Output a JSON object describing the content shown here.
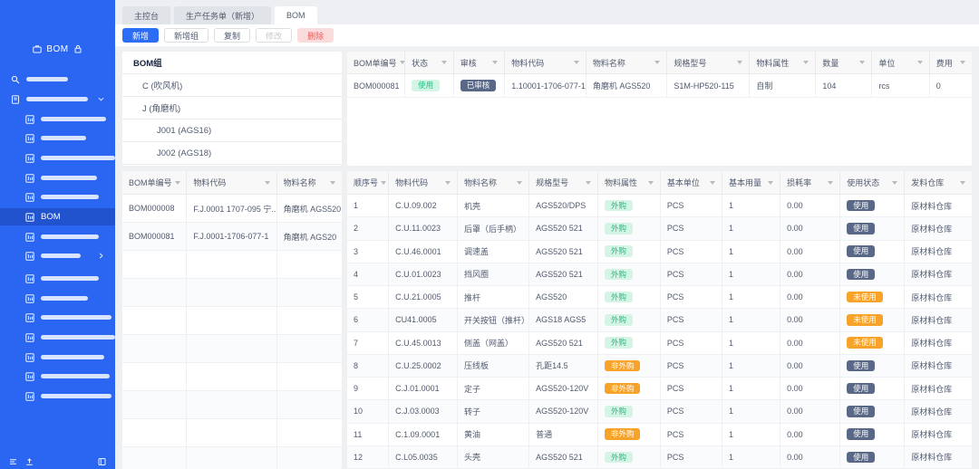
{
  "sidebar": {
    "title": "BOM",
    "header_icons": [
      "briefcase-icon",
      "lock-icon"
    ],
    "active_item": "BOM",
    "items": [
      {
        "icon": "search",
        "redacted_width": 46,
        "indent": 0
      },
      {
        "icon": "doc",
        "redacted_width": 68,
        "indent": 0,
        "chevron": "down"
      },
      {
        "icon": "grid",
        "redacted_width": 72,
        "indent": 1
      },
      {
        "icon": "grid",
        "redacted_width": 50,
        "indent": 1
      },
      {
        "icon": "grid",
        "redacted_width": 90,
        "indent": 1
      },
      {
        "icon": "grid",
        "redacted_width": 62,
        "indent": 1
      },
      {
        "icon": "grid",
        "redacted_width": 64,
        "indent": 1
      },
      {
        "icon": "grid",
        "label": "BOM",
        "indent": 1,
        "active": true
      },
      {
        "icon": "grid",
        "redacted_width": 64,
        "indent": 1
      },
      {
        "icon": "grid",
        "redacted_width": 44,
        "indent": 1,
        "chevron": "right"
      },
      {
        "icon": "grid",
        "redacted_width": 64,
        "indent": 1
      },
      {
        "icon": "grid",
        "redacted_width": 52,
        "indent": 1
      },
      {
        "icon": "grid",
        "redacted_width": 78,
        "indent": 1
      },
      {
        "icon": "grid",
        "redacted_width": 100,
        "indent": 1
      },
      {
        "icon": "grid",
        "redacted_width": 70,
        "indent": 1
      },
      {
        "icon": "grid",
        "redacted_width": 76,
        "indent": 1
      },
      {
        "icon": "grid",
        "redacted_width": 78,
        "indent": 1
      }
    ],
    "footer_icons": [
      "list-icon",
      "upload-icon",
      "window-icon"
    ]
  },
  "tabs": [
    {
      "label": "主控台",
      "active": false
    },
    {
      "label": "生产任务单（新增）",
      "active": false
    },
    {
      "label": "BOM",
      "active": true
    }
  ],
  "toolbar": {
    "buttons": [
      {
        "label": "新增",
        "variant": "primary"
      },
      {
        "label": "新增组",
        "variant": "default"
      },
      {
        "label": "复制",
        "variant": "default"
      },
      {
        "label": "修改",
        "variant": "disabled"
      },
      {
        "label": "删除",
        "variant": "danger"
      }
    ]
  },
  "bom_group_panel": {
    "title": "BOM组",
    "nodes": [
      {
        "label": "C (吹风机)",
        "level": 1
      },
      {
        "label": "J (角磨机)",
        "level": 1
      },
      {
        "label": "J001 (AGS16)",
        "level": 2
      },
      {
        "label": "J002 (AGS18)",
        "level": 2
      }
    ]
  },
  "bom_order_table": {
    "columns": [
      "BOM单编号",
      "状态",
      "审核",
      "物料代码",
      "物料名称",
      "规格型号",
      "物料属性",
      "数量",
      "单位",
      "费用"
    ],
    "rows": [
      [
        "BOM000081",
        {
          "text": "使用",
          "badge": "green"
        },
        {
          "text": "已审核",
          "badge": "dark"
        },
        "1.10001-1706-077-1",
        "角磨机 AGS520",
        "S1M-HP520-115",
        "自制",
        "104",
        "rcs",
        "0"
      ]
    ]
  },
  "bom_list_table": {
    "columns": [
      "BOM单编号",
      "物料代码",
      "物料名称"
    ],
    "rows": [
      [
        "BOM000008",
        "F.J.0001 1707-095 宁...",
        "角磨机 AGS520"
      ],
      [
        "BOM000081",
        "F.J.0001-1706-077-1",
        "角磨机 AGS20"
      ]
    ]
  },
  "bom_detail_table": {
    "columns": [
      "顺序号",
      "物料代码",
      "物料名称",
      "规格型号",
      "物料属性",
      "基本单位",
      "基本用量",
      "损耗率",
      "使用状态",
      "发料仓库"
    ],
    "rows": [
      [
        "1",
        "C.U.09.002",
        "机壳",
        "AGS520/DPS",
        {
          "text": "外购",
          "badge": "green"
        },
        "PCS",
        "1",
        "0.00",
        {
          "text": "使用",
          "badge": "dark"
        },
        "原材料仓库"
      ],
      [
        "2",
        "C.U.11.0023",
        "后罩（后手柄）",
        "AGS520 521",
        {
          "text": "外购",
          "badge": "green"
        },
        "PCS",
        "1",
        "0.00",
        {
          "text": "使用",
          "badge": "dark"
        },
        "原材料仓库"
      ],
      [
        "3",
        "C.U.46.0001",
        "调速盖",
        "AGS520 521",
        {
          "text": "外购",
          "badge": "green"
        },
        "PCS",
        "1",
        "0.00",
        {
          "text": "使用",
          "badge": "dark"
        },
        "原材料仓库"
      ],
      [
        "4",
        "C.U.01.0023",
        "挡风圈",
        "AGS520 521",
        {
          "text": "外购",
          "badge": "green"
        },
        "PCS",
        "1",
        "0.00",
        {
          "text": "使用",
          "badge": "dark"
        },
        "原材料仓库"
      ],
      [
        "5",
        "C.U.21.0005",
        "推杆",
        "AGS520",
        {
          "text": "外购",
          "badge": "green"
        },
        "PCS",
        "1",
        "0.00",
        {
          "text": "未使用",
          "badge": "orange"
        },
        "原材料仓库"
      ],
      [
        "6",
        "CU41.0005",
        "开关按钮（推杆）",
        "AGS18 AGS5",
        {
          "text": "外购",
          "badge": "green"
        },
        "PCS",
        "1",
        "0.00",
        {
          "text": "未使用",
          "badge": "orange"
        },
        "原材料仓库"
      ],
      [
        "7",
        "C.U.45.0013",
        "侧盖（网盖）",
        "AGS520 521",
        {
          "text": "外购",
          "badge": "green"
        },
        "PCS",
        "1",
        "0.00",
        {
          "text": "未使用",
          "badge": "orange"
        },
        "原材料仓库"
      ],
      [
        "8",
        "C.U.25.0002",
        "压线板",
        "孔距14.5",
        {
          "text": "非外购",
          "badge": "orange"
        },
        "PCS",
        "1",
        "0.00",
        {
          "text": "使用",
          "badge": "dark"
        },
        "原材料仓库"
      ],
      [
        "9",
        "C.J.01.0001",
        "定子",
        "AGS520-120V",
        {
          "text": "非外购",
          "badge": "orange"
        },
        "PCS",
        "1",
        "0.00",
        {
          "text": "使用",
          "badge": "dark"
        },
        "原材料仓库"
      ],
      [
        "10",
        "C.J.03.0003",
        "转子",
        "AGS520-120V",
        {
          "text": "外购",
          "badge": "green"
        },
        "PCS",
        "1",
        "0.00",
        {
          "text": "使用",
          "badge": "dark"
        },
        "原材料仓库"
      ],
      [
        "11",
        "C.1.09.0001",
        "黄油",
        "普通",
        {
          "text": "非外购",
          "badge": "orange"
        },
        "PCS",
        "1",
        "0.00",
        {
          "text": "使用",
          "badge": "dark"
        },
        "原材料仓库"
      ],
      [
        "12",
        "C.L05.0035",
        "头壳",
        "AGS520 521",
        {
          "text": "外购",
          "badge": "green"
        },
        "PCS",
        "1",
        "0.00",
        {
          "text": "使用",
          "badge": "dark"
        },
        "原材料仓库"
      ]
    ]
  },
  "colors": {
    "sidebar_blue": "#2a66f2",
    "primary_blue": "#2d6cf5",
    "badge_green_bg": "#d4f5e6",
    "badge_green_text": "#1fbe7f",
    "badge_orange": "#f7a228",
    "badge_dark_slate": "#5a6888",
    "danger_text": "#ee5a5a",
    "danger_bg": "#fbdcdc"
  }
}
